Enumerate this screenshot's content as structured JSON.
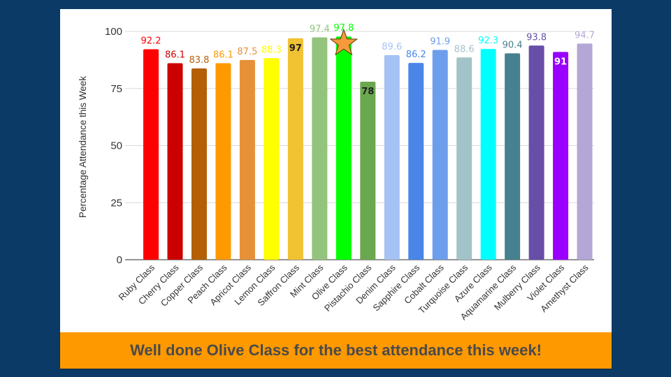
{
  "banner": {
    "text": "Well done Olive Class for the best attendance this week!"
  },
  "colors": {
    "background": "#0b3a66",
    "banner": "#ff9900",
    "star": "#f59a3b"
  },
  "chart_data": {
    "type": "bar",
    "title": "",
    "xlabel": "",
    "ylabel": "Percentage Attendance this Week",
    "ylim": [
      0,
      100
    ],
    "yticks": [
      0,
      25,
      50,
      75,
      100
    ],
    "grid": true,
    "categories": [
      "Ruby Class",
      "Cherry Class",
      "Copper Class",
      "Peach Class",
      "Apricot Class",
      "Lemon Class",
      "Saffron Class",
      "Mint Class",
      "Olive Class",
      "Pistachio Class",
      "Denim Class",
      "Sapphire Class",
      "Cobalt Class",
      "Turquoise Class",
      "Azure Class",
      "Aquamarine Class",
      "Mulberry Class",
      "Violet Class",
      "Amethyst Class"
    ],
    "values": [
      92.2,
      86.1,
      83.8,
      86.1,
      87.5,
      88.3,
      97,
      97.4,
      97.8,
      78,
      89.6,
      86.2,
      91.9,
      88.6,
      92.3,
      90.4,
      93.8,
      91,
      94.7
    ],
    "bar_colors": [
      "#ff0000",
      "#cc0000",
      "#b45f06",
      "#ff9900",
      "#e69138",
      "#ffff00",
      "#f1c232",
      "#93c47d",
      "#00ff00",
      "#6aa84f",
      "#a4c2f4",
      "#4a86e8",
      "#6d9eeb",
      "#a2c4c9",
      "#00ffff",
      "#45818e",
      "#674ea7",
      "#9900ff",
      "#b4a7d6"
    ],
    "label_colors": [
      "#ff0000",
      "#cc0000",
      "#b45f06",
      "#ff9900",
      "#e69138",
      "#ffff00",
      "#222222",
      "#93c47d",
      "#00ff00",
      "#222222",
      "#a4c2f4",
      "#4a86e8",
      "#6d9eeb",
      "#a2c4c9",
      "#00ffff",
      "#45818e",
      "#674ea7",
      "#ffffff",
      "#b4a7d6"
    ],
    "label_inside": [
      false,
      false,
      false,
      false,
      false,
      false,
      true,
      false,
      false,
      true,
      false,
      false,
      false,
      false,
      false,
      false,
      false,
      true,
      false
    ],
    "annotations": [
      {
        "type": "star",
        "category": "Olive Class",
        "meaning": "best attendance"
      }
    ]
  }
}
